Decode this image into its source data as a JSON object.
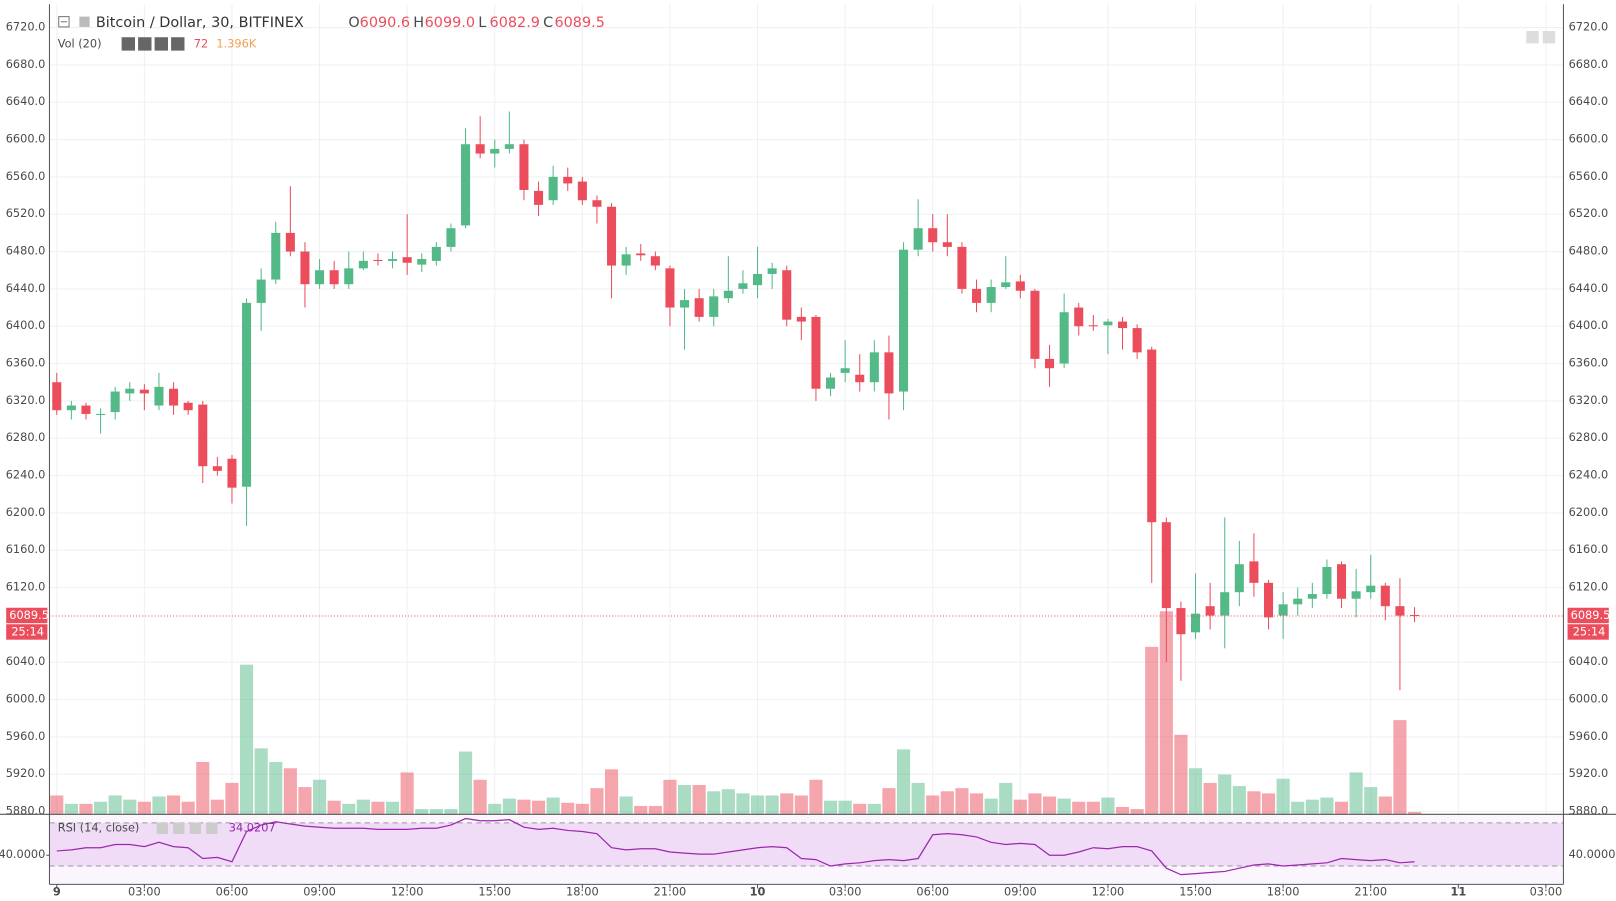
{
  "chart_data": {
    "type": "candlestick",
    "title": "Bitcoin / Dollar, 30, BITFINEX",
    "ohlc_legend": [
      {
        "key": "O",
        "value": "6090.6"
      },
      {
        "key": "H",
        "value": "6099.0"
      },
      {
        "key": "L",
        "value": "6082.9"
      },
      {
        "key": "C",
        "value": "6089.5"
      }
    ],
    "volume_label": "Vol (20)",
    "volume_ma_label": "1.396K",
    "rsi_label": "RSI (14, close)",
    "countdown": "25:14",
    "up_color": "#53b987",
    "down_color": "#eb4d5c",
    "xlim": [
      -0.5,
      103.2
    ],
    "xticks": [
      {
        "value": 0,
        "label": "9"
      },
      {
        "value": 6,
        "label": "03:00"
      },
      {
        "value": 12,
        "label": "06:00"
      },
      {
        "value": 18,
        "label": "09:00"
      },
      {
        "value": 24,
        "label": "12:00"
      },
      {
        "value": 30,
        "label": "15:00"
      },
      {
        "value": 36,
        "label": "18:00"
      },
      {
        "value": 42,
        "label": "21:00"
      },
      {
        "value": 48,
        "label": "10"
      },
      {
        "value": 54,
        "label": "03:00"
      },
      {
        "value": 60,
        "label": "06:00"
      },
      {
        "value": 66,
        "label": "09:00"
      },
      {
        "value": 72,
        "label": "12:00"
      },
      {
        "value": 78,
        "label": "15:00"
      },
      {
        "value": 84,
        "label": "18:00"
      },
      {
        "value": 90,
        "label": "21:00"
      },
      {
        "value": 96,
        "label": "11"
      },
      {
        "value": 102,
        "label": "03:00"
      }
    ],
    "ylim": [
      5877,
      6745
    ],
    "yticks": [
      {
        "value": 6720,
        "label": "6720.0"
      },
      {
        "value": 6680,
        "label": "6680.0"
      },
      {
        "value": 6640,
        "label": "6640.0"
      },
      {
        "value": 6600,
        "label": "6600.0"
      },
      {
        "value": 6560,
        "label": "6560.0"
      },
      {
        "value": 6520,
        "label": "6520.0"
      },
      {
        "value": 6480,
        "label": "6480.0"
      },
      {
        "value": 6440,
        "label": "6440.0"
      },
      {
        "value": 6400,
        "label": "6400.0"
      },
      {
        "value": 6360,
        "label": "6360.0"
      },
      {
        "value": 6320,
        "label": "6320.0"
      },
      {
        "value": 6280,
        "label": "6280.0"
      },
      {
        "value": 6240,
        "label": "6240.0"
      },
      {
        "value": 6200,
        "label": "6200.0"
      },
      {
        "value": 6160,
        "label": "6160.0"
      },
      {
        "value": 6120,
        "label": "6120.0"
      },
      {
        "value": 6040,
        "label": "6040.0"
      },
      {
        "value": 6000,
        "label": "6000.0"
      },
      {
        "value": 5960,
        "label": "5960.0"
      },
      {
        "value": 5920,
        "label": "5920.0"
      },
      {
        "value": 5880,
        "label": "5880.0"
      }
    ],
    "grid": true,
    "open": [
      6340,
      6310,
      6315,
      6305,
      6308,
      6328,
      6332,
      6315,
      6333,
      6318,
      6316,
      6250,
      6258,
      6228,
      6425,
      6450,
      6500,
      6480,
      6445,
      6460,
      6445,
      6462,
      6471,
      6470,
      6474,
      6466,
      6470,
      6485,
      6508,
      6595,
      6585,
      6590,
      6595,
      6545,
      6535,
      6560,
      6555,
      6535,
      6528,
      6465,
      6478,
      6475,
      6462,
      6420,
      6430,
      6410,
      6430,
      6440,
      6444,
      6456,
      6460,
      6410,
      6410,
      6333,
      6350,
      6348,
      6340,
      6372,
      6330,
      6482,
      6505,
      6490,
      6485,
      6440,
      6425,
      6442,
      6448,
      6438,
      6365,
      6360,
      6420,
      6401,
      6401,
      6405,
      6398,
      6375,
      6190,
      6098,
      6072,
      6100,
      6090,
      6115,
      6148,
      6125,
      6090,
      6102,
      6108,
      6113,
      6145,
      6108,
      6115,
      6122,
      6100,
      6090.6
    ],
    "high": [
      6350,
      6320,
      6318,
      6312,
      6335,
      6340,
      6338,
      6350,
      6340,
      6320,
      6320,
      6260,
      6262,
      6430,
      6462,
      6512,
      6550,
      6490,
      6472,
      6470,
      6480,
      6480,
      6478,
      6480,
      6520,
      6478,
      6490,
      6510,
      6612,
      6625,
      6600,
      6630,
      6600,
      6555,
      6572,
      6570,
      6560,
      6540,
      6532,
      6485,
      6488,
      6480,
      6465,
      6440,
      6440,
      6440,
      6475,
      6460,
      6485,
      6468,
      6465,
      6420,
      6412,
      6350,
      6385,
      6370,
      6385,
      6390,
      6490,
      6536,
      6520,
      6520,
      6490,
      6450,
      6450,
      6475,
      6455,
      6440,
      6380,
      6435,
      6425,
      6412,
      6408,
      6410,
      6402,
      6378,
      6195,
      6105,
      6135,
      6125,
      6195,
      6170,
      6178,
      6128,
      6115,
      6120,
      6125,
      6150,
      6148,
      6140,
      6155,
      6125,
      6130,
      6099
    ],
    "low": [
      6305,
      6300,
      6300,
      6285,
      6300,
      6320,
      6310,
      6310,
      6305,
      6305,
      6232,
      6240,
      6210,
      6186,
      6395,
      6445,
      6475,
      6420,
      6440,
      6440,
      6440,
      6460,
      6465,
      6462,
      6455,
      6458,
      6465,
      6480,
      6505,
      6580,
      6570,
      6585,
      6535,
      6518,
      6530,
      6545,
      6530,
      6510,
      6430,
      6455,
      6470,
      6460,
      6400,
      6375,
      6405,
      6400,
      6425,
      6435,
      6430,
      6440,
      6400,
      6385,
      6320,
      6325,
      6340,
      6330,
      6330,
      6300,
      6310,
      6475,
      6480,
      6475,
      6435,
      6415,
      6415,
      6440,
      6430,
      6355,
      6335,
      6355,
      6390,
      6395,
      6370,
      6375,
      6365,
      6125,
      6040,
      6020,
      6065,
      6075,
      6055,
      6100,
      6110,
      6075,
      6065,
      6090,
      6098,
      6108,
      6098,
      6088,
      6108,
      6085,
      6010,
      6082.9
    ],
    "close": [
      6310,
      6315,
      6306,
      6306,
      6330,
      6333,
      6328,
      6335,
      6315,
      6310,
      6250,
      6245,
      6227,
      6425,
      6450,
      6500,
      6480,
      6445,
      6460,
      6445,
      6462,
      6470,
      6470,
      6472,
      6468,
      6472,
      6485,
      6505,
      6595,
      6585,
      6590,
      6595,
      6546,
      6530,
      6560,
      6553,
      6535,
      6528,
      6465,
      6477,
      6476,
      6465,
      6420,
      6428,
      6410,
      6432,
      6438,
      6446,
      6456,
      6462,
      6407,
      6405,
      6333,
      6345,
      6355,
      6340,
      6372,
      6328,
      6482,
      6505,
      6490,
      6485,
      6440,
      6425,
      6442,
      6447,
      6438,
      6365,
      6355,
      6415,
      6400,
      6400,
      6405,
      6398,
      6372,
      6190,
      6098,
      6070,
      6092,
      6090,
      6115,
      6145,
      6125,
      6088,
      6102,
      6108,
      6113,
      6142,
      6108,
      6116,
      6122,
      6100,
      6090,
      6089.5
    ],
    "volume": [
      594,
      330,
      330,
      396,
      594,
      462,
      396,
      561,
      594,
      396,
      1650,
      462,
      990,
      4719,
      2079,
      1650,
      1452,
      858,
      1089,
      429,
      330,
      462,
      396,
      396,
      1320,
      165,
      165,
      165,
      1980,
      1089,
      330,
      495,
      462,
      429,
      528,
      363,
      330,
      825,
      1419,
      561,
      264,
      264,
      1089,
      924,
      924,
      726,
      792,
      660,
      594,
      594,
      660,
      594,
      1089,
      429,
      429,
      330,
      330,
      825,
      2046,
      990,
      594,
      726,
      825,
      660,
      495,
      990,
      462,
      660,
      561,
      495,
      396,
      396,
      528,
      231,
      165,
      5280,
      6402,
      2508,
      1452,
      990,
      1254,
      891,
      726,
      660,
      1122,
      396,
      462,
      528,
      396,
      1320,
      858,
      561,
      2970,
      72
    ],
    "rsi": {
      "color": "#9c27b0",
      "ylim": [
        13,
        77
      ],
      "bands": [
        30,
        70
      ],
      "yticks": [
        {
          "value": 40,
          "label": "40.0000"
        }
      ],
      "values": [
        44,
        45,
        47,
        47,
        50,
        50,
        48,
        52,
        48,
        47,
        37,
        38,
        34,
        62,
        68,
        71,
        69,
        67,
        66,
        65,
        65,
        65,
        64,
        64,
        64,
        65,
        65,
        68,
        74,
        72,
        72,
        73,
        66,
        64,
        65,
        63,
        62,
        60,
        47,
        45,
        46,
        46,
        43,
        42,
        41,
        41,
        43,
        45,
        47,
        48,
        47,
        37,
        36,
        30,
        32,
        33,
        35,
        36,
        35,
        37,
        59,
        60,
        59,
        57,
        52,
        50,
        51,
        50,
        40,
        40,
        43,
        47,
        46,
        48,
        48,
        44,
        28,
        22,
        23,
        24,
        25,
        28,
        31,
        32,
        30,
        31,
        32,
        33,
        37,
        36,
        35,
        36,
        33,
        34.0207
      ]
    }
  }
}
